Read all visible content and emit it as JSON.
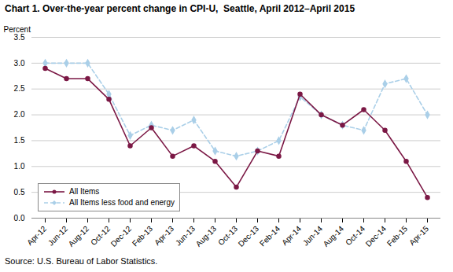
{
  "chart_data": {
    "type": "line",
    "title": "Chart 1. Over-the-year percent change in CPI-U,  Seattle, April 2012–April 2015",
    "y_label": "Percent",
    "source": "Source: U.S. Bureau of Labor Statistics.",
    "categories": [
      "Apr-12",
      "Jun-12",
      "Aug-12",
      "Oct-12",
      "Dec-12",
      "Feb-13",
      "Apr-13",
      "Jun-13",
      "Aug-13",
      "Oct-13",
      "Dec-13",
      "Feb-14",
      "Apr-14",
      "Jun-14",
      "Aug-14",
      "Oct-14",
      "Dec-14",
      "Feb-15",
      "Apr-15"
    ],
    "series": [
      {
        "name": "All Items",
        "color": "#7B1845",
        "marker": "circle",
        "line_style": "solid",
        "values": [
          2.9,
          2.7,
          2.7,
          2.3,
          1.4,
          1.75,
          1.2,
          1.4,
          1.1,
          0.6,
          1.3,
          1.2,
          2.4,
          2.0,
          1.8,
          2.1,
          1.7,
          1.1,
          0.4
        ]
      },
      {
        "name": "All Items less food and energy",
        "color": "#AACFE8",
        "marker": "diamond",
        "line_style": "dashed",
        "values": [
          3.0,
          3.0,
          3.0,
          2.4,
          1.6,
          1.8,
          1.7,
          1.9,
          1.3,
          1.2,
          1.3,
          1.5,
          2.35,
          2.0,
          1.8,
          1.7,
          2.6,
          2.7,
          2.0
        ]
      }
    ],
    "ylim": [
      0.0,
      3.5
    ],
    "yticks": [
      {
        "value": 0.0,
        "label": "0.0"
      },
      0.5,
      {
        "value": 1.0,
        "label": "1.0"
      },
      1.5,
      {
        "value": 2.0,
        "label": "2.0"
      },
      2.5,
      {
        "value": 3.0,
        "label": "3.0"
      },
      3.5
    ],
    "grid": true,
    "legend": "lower left"
  }
}
